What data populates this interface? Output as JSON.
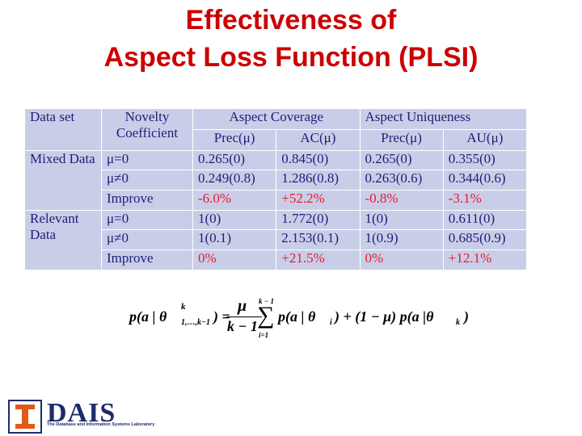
{
  "title": {
    "line1": "Effectiveness of",
    "line2": "Aspect Loss Function (PLSI)"
  },
  "table": {
    "header": {
      "data_set": "Data set",
      "novelty": "Novelty Coefficient",
      "aspect_coverage": "Aspect Coverage",
      "aspect_uniqueness": "Aspect Uniqueness",
      "prec1": "Prec(μ)",
      "ac": "AC(μ)",
      "prec2": "Prec(μ)",
      "au": "AU(μ)"
    },
    "groups": [
      {
        "name": "Mixed Data",
        "rows": [
          {
            "coef": "μ=0",
            "prec": "0.265(0)",
            "ac": "0.845(0)",
            "prec2": "0.265(0)",
            "au": "0.355(0)"
          },
          {
            "coef": "μ≠0",
            "prec": "0.249(0.8)",
            "ac": "1.286(0.8)",
            "prec2": "0.263(0.6)",
            "au": "0.344(0.6)"
          },
          {
            "coef": "Improve",
            "prec": "-6.0%",
            "ac": "+52.2%",
            "prec2": "-0.8%",
            "au": "-3.1%"
          }
        ]
      },
      {
        "name": "Relevant Data",
        "rows": [
          {
            "coef": "μ=0",
            "prec": "1(0)",
            "ac": "1.772(0)",
            "prec2": "1(0)",
            "au": "0.611(0)"
          },
          {
            "coef": "μ≠0",
            "prec": "1(0.1)",
            "ac": "2.153(0.1)",
            "prec2": "1(0.9)",
            "au": "0.685(0.9)"
          },
          {
            "coef": "Improve",
            "prec": "0%",
            "ac": "+21.5%",
            "prec2": "0%",
            "au": "+12.1%"
          }
        ]
      }
    ]
  },
  "formula": {
    "lhs": "p(a | θ",
    "lhs_sup": "k",
    "lhs_sub": "1,…,k−1",
    "lhs_close": ") =",
    "frac_num": "μ",
    "frac_den": "k − 1",
    "sum_top": "k − 1",
    "sum_bottom": "i=1",
    "sum_symbol": "∑",
    "rhs1": "p(a | θ",
    "rhs1_sub": "i",
    "rhs2": ") + (1 − μ) p(a |θ",
    "rhs2_sub": "k",
    "rhs_close": ")"
  },
  "logo": {
    "letter": "I",
    "brand": "DAIS",
    "lab_name": "The Database and Information Systems Laboratory",
    "brand_color": "#1f2b6b",
    "accent_color": "#e05a1a"
  }
}
